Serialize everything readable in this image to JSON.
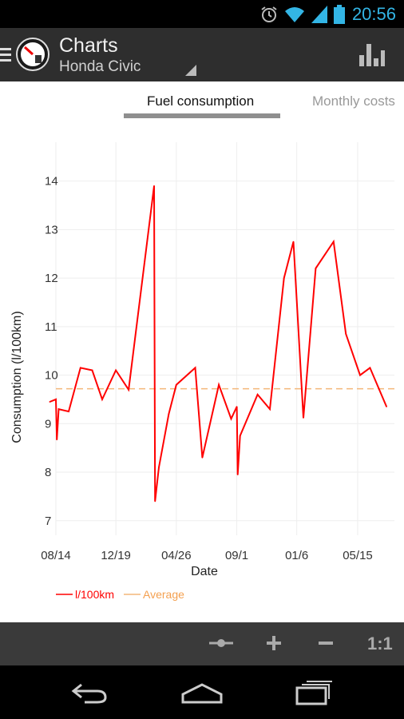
{
  "status": {
    "time": "20:56"
  },
  "header": {
    "title": "Charts",
    "subtitle": "Honda Civic"
  },
  "tabs": [
    {
      "label": "Fuel consumption",
      "active": true
    },
    {
      "label": "Monthly costs",
      "active": false
    }
  ],
  "bottom_toolbar": {
    "zoom_reset_label": "1:1"
  },
  "colors": {
    "line": "#ff0000",
    "average": "#f4b77a",
    "accent": "#33b5e5"
  },
  "chart_data": {
    "type": "line",
    "xlabel": "Date",
    "ylabel": "Consumption (l/100km)",
    "x_ticks": [
      "08/14",
      "12/19",
      "04/26",
      "09/1",
      "01/6",
      "05/15"
    ],
    "y_ticks": [
      "7",
      "8",
      "9",
      "10",
      "11",
      "12",
      "13",
      "14"
    ],
    "ylim": [
      6.7,
      14.8
    ],
    "grid": true,
    "legend_position": "bottom-left",
    "average": 9.72,
    "series": [
      {
        "name": "l/100km",
        "points": [
          [
            "08/01",
            9.45
          ],
          [
            "08/14",
            9.5
          ],
          [
            "08/16",
            8.67
          ],
          [
            "08/20",
            9.3
          ],
          [
            "09/10",
            9.25
          ],
          [
            "10/05",
            10.15
          ],
          [
            "10/30",
            10.1
          ],
          [
            "11/20",
            9.5
          ],
          [
            "12/19",
            10.1
          ],
          [
            "01/15",
            9.7
          ],
          [
            "03/10",
            13.9
          ],
          [
            "03/12",
            7.4
          ],
          [
            "03/20",
            8.1
          ],
          [
            "04/10",
            9.2
          ],
          [
            "04/26",
            9.8
          ],
          [
            "06/05",
            10.15
          ],
          [
            "06/20",
            8.3
          ],
          [
            "07/25",
            9.8
          ],
          [
            "08/20",
            9.1
          ],
          [
            "09/01",
            9.35
          ],
          [
            "09/03",
            7.95
          ],
          [
            "09/08",
            8.75
          ],
          [
            "10/15",
            9.6
          ],
          [
            "11/10",
            9.3
          ],
          [
            "12/10",
            12.0
          ],
          [
            "12/30",
            12.75
          ],
          [
            "01/20",
            9.12
          ],
          [
            "02/15",
            12.2
          ],
          [
            "03/25",
            12.75
          ],
          [
            "04/20",
            10.85
          ],
          [
            "05/20",
            10.0
          ],
          [
            "06/10",
            10.15
          ],
          [
            "07/15",
            9.35
          ]
        ]
      },
      {
        "name": "Average"
      }
    ]
  }
}
